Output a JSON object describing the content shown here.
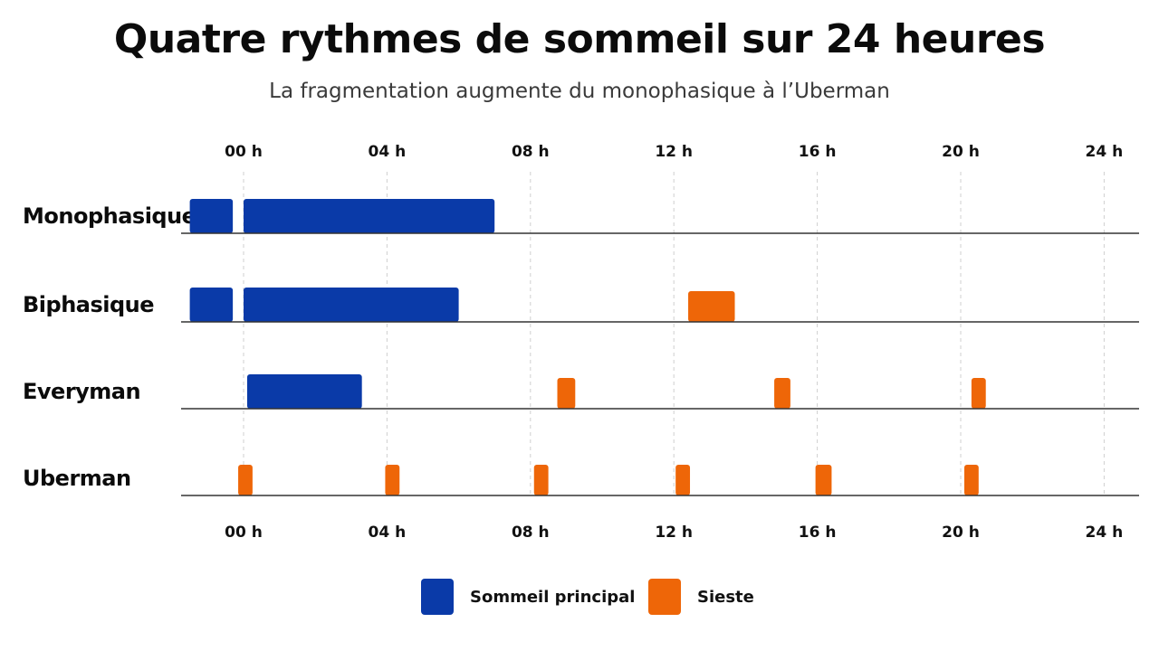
{
  "title": "Quatre rythmes de sommeil sur 24 heures",
  "subtitle": "La fragmentation augmente du monophasique à l’Uberman",
  "colors": {
    "principal": "#0a3aa8",
    "sieste": "#ee6608",
    "grid": "#cfcfcf",
    "baseline": "#333333"
  },
  "legend": [
    {
      "label": "Sommeil principal",
      "color": "#0a3aa8"
    },
    {
      "label": "Sieste",
      "color": "#ee6608"
    }
  ],
  "chart_data": {
    "type": "gantt",
    "x_ticks": [
      {
        "value": 0,
        "label": "00 h"
      },
      {
        "value": 4,
        "label": "04 h"
      },
      {
        "value": 8,
        "label": "08 h"
      },
      {
        "value": 12,
        "label": "12 h"
      },
      {
        "value": 16,
        "label": "16 h"
      },
      {
        "value": 20,
        "label": "20 h"
      },
      {
        "value": 24,
        "label": "24 h"
      }
    ],
    "x_range_hours": [
      -1.7,
      25
    ],
    "grid": "vertical dashed",
    "legend_position": "bottom-center",
    "rows": [
      {
        "label": "Monophasique",
        "segments": [
          {
            "start": -1.5,
            "end": -0.3,
            "type": "principal"
          },
          {
            "start": 0,
            "end": 7,
            "type": "principal"
          }
        ]
      },
      {
        "label": "Biphasique",
        "segments": [
          {
            "start": -1.5,
            "end": -0.3,
            "type": "principal"
          },
          {
            "start": 0,
            "end": 6,
            "type": "principal"
          },
          {
            "start": 12.4,
            "end": 13.7,
            "type": "sieste"
          }
        ]
      },
      {
        "label": "Everyman",
        "segments": [
          {
            "start": 0.1,
            "end": 3.3,
            "type": "principal"
          },
          {
            "start": 8.75,
            "end": 9.25,
            "type": "sieste"
          },
          {
            "start": 14.8,
            "end": 15.25,
            "type": "sieste"
          },
          {
            "start": 20.3,
            "end": 20.7,
            "type": "sieste"
          }
        ]
      },
      {
        "label": "Uberman",
        "segments": [
          {
            "start": -0.15,
            "end": 0.25,
            "type": "sieste"
          },
          {
            "start": 3.95,
            "end": 4.35,
            "type": "sieste"
          },
          {
            "start": 8.1,
            "end": 8.5,
            "type": "sieste"
          },
          {
            "start": 12.05,
            "end": 12.45,
            "type": "sieste"
          },
          {
            "start": 15.95,
            "end": 16.4,
            "type": "sieste"
          },
          {
            "start": 20.1,
            "end": 20.5,
            "type": "sieste"
          }
        ]
      }
    ]
  }
}
